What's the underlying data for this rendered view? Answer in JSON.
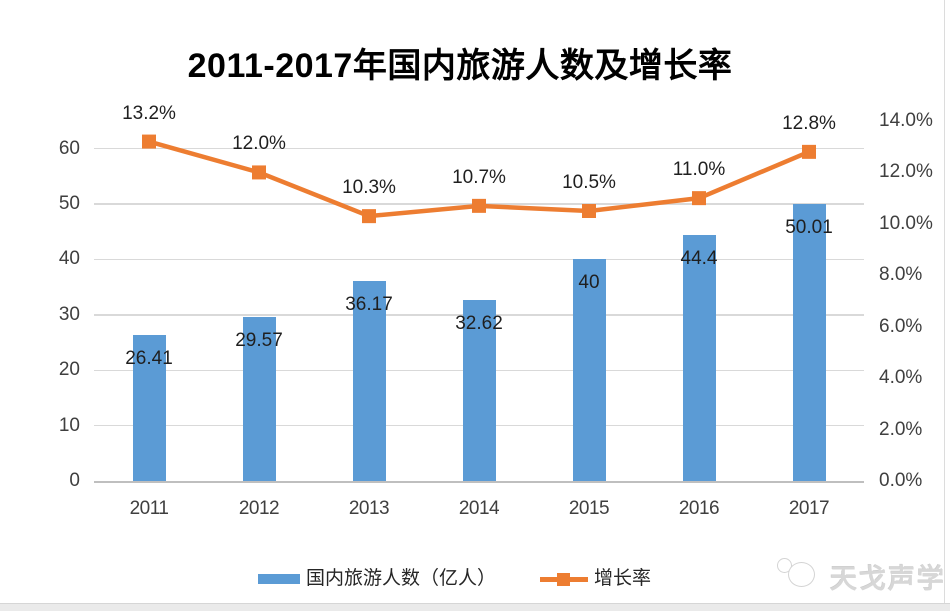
{
  "watermark": {
    "logo": "chat-bubbles-logo",
    "text": "天戈声学"
  },
  "chart_data": {
    "type": "combo-bar-line",
    "title": "2011-2017年国内旅游人数及增长率",
    "categories": [
      "2011",
      "2012",
      "2013",
      "2014",
      "2015",
      "2016",
      "2017"
    ],
    "series": [
      {
        "name": "国内旅游人数（亿人）",
        "chart_type": "bar",
        "axis": "left",
        "color": "#5B9BD5",
        "values": [
          26.41,
          29.57,
          36.17,
          32.62,
          40,
          44.4,
          50.01
        ],
        "data_labels": [
          "26.41",
          "29.57",
          "36.17",
          "32.62",
          "40",
          "44.4",
          "50.01"
        ]
      },
      {
        "name": "增长率",
        "chart_type": "line",
        "axis": "right",
        "color": "#ED7D31",
        "values": [
          13.2,
          12.0,
          10.3,
          10.7,
          10.5,
          11.0,
          12.8
        ],
        "data_labels": [
          "13.2%",
          "12.0%",
          "10.3%",
          "10.7%",
          "10.5%",
          "11.0%",
          "12.8%"
        ]
      }
    ],
    "left_axis": {
      "min": 0,
      "scale_max": 65,
      "tick_labels": [
        "0",
        "10",
        "20",
        "30",
        "40",
        "50",
        "60"
      ]
    },
    "right_axis": {
      "min": 0,
      "max": 14,
      "tick_labels": [
        "0.0%",
        "2.0%",
        "4.0%",
        "6.0%",
        "8.0%",
        "10.0%",
        "12.0%",
        "14.0%"
      ]
    },
    "legend_position": "bottom",
    "grid": "horizontal-major"
  },
  "colors": {
    "bar": "#5B9BD5",
    "line": "#ED7D31",
    "gridline": "#D9D9D9",
    "axis_text": "#3F3F3F",
    "label_text": "#1F1F1F"
  }
}
